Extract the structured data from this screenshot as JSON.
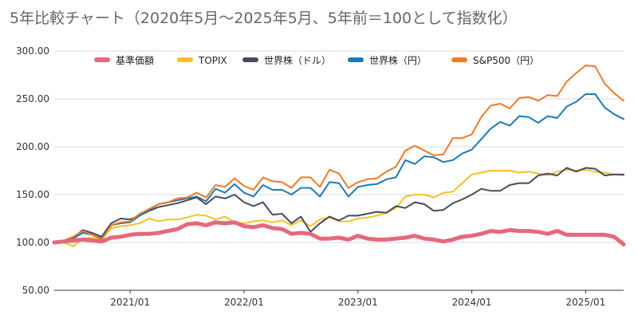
{
  "chart_data": {
    "type": "line",
    "title": "5年比較チャート（2020年5月〜2025年5月、5年前＝100として指数化）",
    "xlabel": "",
    "ylabel": "",
    "ylim": [
      50,
      300
    ],
    "yticks": [
      "50.00",
      "100.00",
      "150.00",
      "200.00",
      "250.00",
      "300.00"
    ],
    "xticks": [
      {
        "label": "2021/01",
        "month_index": 8
      },
      {
        "label": "2022/01",
        "month_index": 20
      },
      {
        "label": "2023/01",
        "month_index": 32
      },
      {
        "label": "2024/01",
        "month_index": 44
      },
      {
        "label": "2025/01",
        "month_index": 56
      }
    ],
    "x_start": "2020/05",
    "x_end": "2025/05",
    "grid": "horizontal",
    "legend_position": "top",
    "series": [
      {
        "name": "基準価額",
        "color": "#e8677a",
        "width": 5,
        "values": [
          100,
          101,
          102,
          103,
          102,
          101,
          105,
          106,
          108,
          109,
          109,
          110,
          112,
          114,
          119,
          120,
          118,
          121,
          120,
          121,
          117,
          116,
          118,
          115,
          114,
          109,
          110,
          109,
          104,
          104,
          105,
          103,
          107,
          104,
          103,
          103,
          104,
          105,
          107,
          104,
          103,
          101,
          103,
          106,
          107,
          109,
          112,
          111,
          113,
          112,
          112,
          111,
          109,
          112,
          108,
          108,
          108,
          108,
          108,
          106,
          98
        ]
      },
      {
        "name": "TOPIX",
        "color": "#f5c125",
        "width": 2,
        "values": [
          100,
          100,
          96,
          104,
          105,
          103,
          115,
          117,
          118,
          120,
          125,
          122,
          124,
          124,
          126,
          129,
          128,
          124,
          127,
          121,
          120,
          122,
          123,
          121,
          123,
          118,
          123,
          117,
          124,
          126,
          122,
          122,
          125,
          126,
          128,
          131,
          136,
          148,
          150,
          150,
          147,
          152,
          153,
          162,
          171,
          173,
          175,
          175,
          175,
          173,
          174,
          172,
          170,
          174,
          176,
          175,
          176,
          174,
          173,
          171,
          170
        ]
      },
      {
        "name": "世界株（ドル）",
        "color": "#4a4a5a",
        "width": 2,
        "values": [
          100,
          101,
          105,
          113,
          110,
          106,
          120,
          125,
          124,
          128,
          133,
          137,
          139,
          141,
          144,
          147,
          140,
          148,
          146,
          150,
          142,
          138,
          142,
          129,
          130,
          120,
          127,
          111,
          120,
          127,
          123,
          128,
          128,
          130,
          132,
          131,
          138,
          136,
          142,
          140,
          133,
          134,
          141,
          145,
          150,
          156,
          154,
          154,
          160,
          162,
          162,
          170,
          172,
          170,
          178,
          174,
          178,
          177,
          170,
          171,
          171
        ]
      },
      {
        "name": "世界株（円）",
        "color": "#1b7bb6",
        "width": 2,
        "values": [
          100,
          101,
          104,
          110,
          108,
          104,
          118,
          120,
          121,
          128,
          134,
          140,
          142,
          144,
          146,
          148,
          143,
          156,
          152,
          161,
          152,
          148,
          160,
          155,
          155,
          150,
          157,
          157,
          148,
          163,
          162,
          148,
          158,
          160,
          161,
          166,
          168,
          186,
          182,
          190,
          189,
          184,
          186,
          193,
          197,
          208,
          219,
          226,
          222,
          232,
          231,
          225,
          232,
          230,
          242,
          247,
          255,
          255,
          241,
          234,
          229
        ]
      },
      {
        "name": "S&P500（円）",
        "color": "#f07a24",
        "width": 2,
        "values": [
          100,
          102,
          106,
          112,
          108,
          103,
          118,
          121,
          122,
          130,
          135,
          140,
          142,
          146,
          147,
          152,
          147,
          160,
          158,
          167,
          159,
          155,
          168,
          164,
          163,
          157,
          168,
          168,
          158,
          176,
          172,
          157,
          163,
          166,
          167,
          174,
          179,
          196,
          201,
          196,
          191,
          192,
          209,
          209,
          213,
          231,
          243,
          245,
          240,
          251,
          252,
          248,
          254,
          253,
          268,
          277,
          285,
          284,
          266,
          256,
          248
        ]
      }
    ]
  }
}
